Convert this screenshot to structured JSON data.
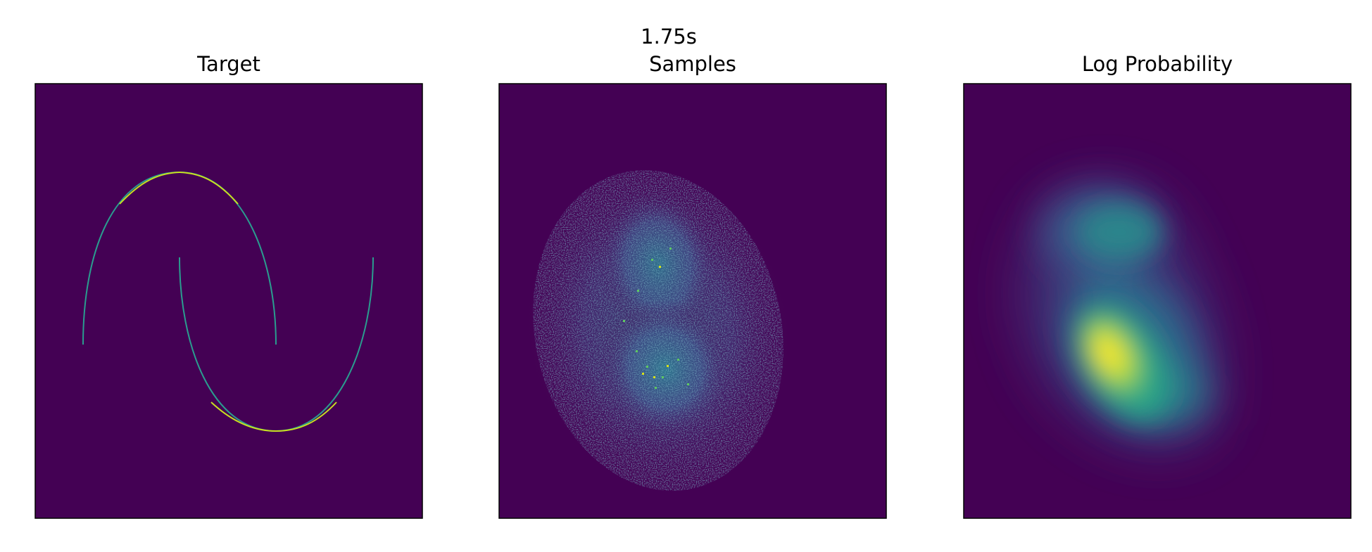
{
  "figure": {
    "suptitle": "1.75s"
  },
  "chart_data": [
    {
      "type": "heatmap",
      "title": "Target",
      "colormap": "viridis",
      "background_color": "#440154",
      "axes_visible": false,
      "grid": false,
      "content": "two interleaving half-moon arcs rendered as a 2D density image"
    },
    {
      "type": "heatmap",
      "title": "Samples",
      "colormap": "viridis",
      "background_color": "#440154",
      "axes_visible": false,
      "grid": false,
      "content": "2D histogram of generated samples; a noisy elongated cloud with two denser lobes"
    },
    {
      "type": "heatmap",
      "title": "Log Probability",
      "colormap": "viridis",
      "background_color": "#440154",
      "axes_visible": false,
      "grid": false,
      "content": "smooth model density; peak (yellow) in the lower-left lobe, weaker teal lobe at the top"
    }
  ]
}
